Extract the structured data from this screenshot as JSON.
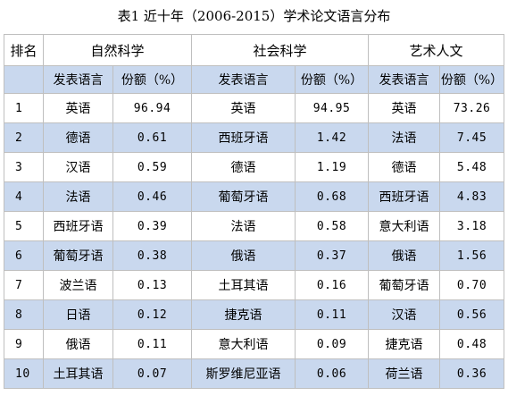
{
  "title": "表1 近十年（2006-2015）学术论文语言分布",
  "header": {
    "rank": "排名",
    "groups": [
      "自然科学",
      "社会科学",
      "艺术人文"
    ],
    "sub_lang": "发表语言",
    "sub_share": "份额（%）"
  },
  "rows": [
    {
      "rank": "1",
      "ns": [
        "英语",
        "96.94"
      ],
      "ss": [
        "英语",
        "94.95"
      ],
      "ah": [
        "英语",
        "73.26"
      ]
    },
    {
      "rank": "2",
      "ns": [
        "德语",
        "0.61"
      ],
      "ss": [
        "西班牙语",
        "1.42"
      ],
      "ah": [
        "法语",
        "7.45"
      ]
    },
    {
      "rank": "3",
      "ns": [
        "汉语",
        "0.59"
      ],
      "ss": [
        "德语",
        "1.19"
      ],
      "ah": [
        "德语",
        "5.48"
      ]
    },
    {
      "rank": "4",
      "ns": [
        "法语",
        "0.46"
      ],
      "ss": [
        "葡萄牙语",
        "0.68"
      ],
      "ah": [
        "西班牙语",
        "4.83"
      ]
    },
    {
      "rank": "5",
      "ns": [
        "西班牙语",
        "0.39"
      ],
      "ss": [
        "法语",
        "0.58"
      ],
      "ah": [
        "意大利语",
        "3.18"
      ]
    },
    {
      "rank": "6",
      "ns": [
        "葡萄牙语",
        "0.38"
      ],
      "ss": [
        "俄语",
        "0.37"
      ],
      "ah": [
        "俄语",
        "1.56"
      ]
    },
    {
      "rank": "7",
      "ns": [
        "波兰语",
        "0.13"
      ],
      "ss": [
        "土耳其语",
        "0.16"
      ],
      "ah": [
        "葡萄牙语",
        "0.70"
      ]
    },
    {
      "rank": "8",
      "ns": [
        "日语",
        "0.12"
      ],
      "ss": [
        "捷克语",
        "0.11"
      ],
      "ah": [
        "汉语",
        "0.56"
      ]
    },
    {
      "rank": "9",
      "ns": [
        "俄语",
        "0.11"
      ],
      "ss": [
        "意大利语",
        "0.09"
      ],
      "ah": [
        "捷克语",
        "0.48"
      ]
    },
    {
      "rank": "10",
      "ns": [
        "土耳其语",
        "0.07"
      ],
      "ss": [
        "斯罗维尼亚语",
        "0.06"
      ],
      "ah": [
        "荷兰语",
        "0.36"
      ]
    }
  ],
  "colors": {
    "stripe": "#c9d8ee",
    "border": "#bfbfbf"
  }
}
